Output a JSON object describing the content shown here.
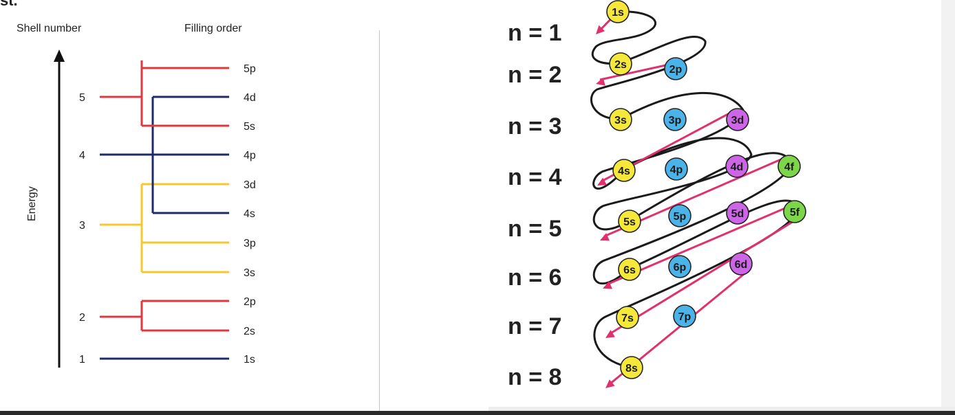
{
  "top_fragment": "st.",
  "left_diagram": {
    "headers": {
      "shell": "Shell number",
      "filling": "Filling order"
    },
    "axis_label": "Energy",
    "shells": [
      {
        "label": "1",
        "color": "#1f2a6b",
        "orbitals": [
          "1s"
        ]
      },
      {
        "label": "2",
        "color": "#e0383e",
        "orbitals": [
          "2s",
          "2p"
        ]
      },
      {
        "label": "3",
        "color": "#f5c832",
        "orbitals": [
          "3s",
          "3p",
          "3d"
        ]
      },
      {
        "label": "4",
        "color": "#1f2a6b",
        "orbitals": [
          "4s",
          "4p",
          "4d"
        ]
      },
      {
        "label": "5",
        "color": "#e0383e",
        "orbitals": [
          "5s",
          "5p"
        ]
      }
    ],
    "filling_order": [
      "5p",
      "4d",
      "5s",
      "4p",
      "3d",
      "4s",
      "3p",
      "3s",
      "2p",
      "2s",
      "1s"
    ]
  },
  "right_diagram": {
    "levels": [
      "n = 1",
      "n = 2",
      "n = 3",
      "n = 4",
      "n = 5",
      "n = 6",
      "n = 7",
      "n = 8"
    ],
    "subshell_colors": {
      "s": "#f5e83a",
      "p": "#4bb3e8",
      "d": "#cc66e6",
      "f": "#7dd64a"
    },
    "bubbles": [
      {
        "label": "1s",
        "type": "s"
      },
      {
        "label": "2s",
        "type": "s"
      },
      {
        "label": "2p",
        "type": "p"
      },
      {
        "label": "3s",
        "type": "s"
      },
      {
        "label": "3p",
        "type": "p"
      },
      {
        "label": "3d",
        "type": "d"
      },
      {
        "label": "4s",
        "type": "s"
      },
      {
        "label": "4p",
        "type": "p"
      },
      {
        "label": "4d",
        "type": "d"
      },
      {
        "label": "4f",
        "type": "f"
      },
      {
        "label": "5s",
        "type": "s"
      },
      {
        "label": "5p",
        "type": "p"
      },
      {
        "label": "5d",
        "type": "d"
      },
      {
        "label": "5f",
        "type": "f"
      },
      {
        "label": "6s",
        "type": "s"
      },
      {
        "label": "6p",
        "type": "p"
      },
      {
        "label": "6d",
        "type": "d"
      },
      {
        "label": "7s",
        "type": "s"
      },
      {
        "label": "7p",
        "type": "p"
      },
      {
        "label": "8s",
        "type": "s"
      }
    ],
    "arrow_color": "#e0306e"
  }
}
